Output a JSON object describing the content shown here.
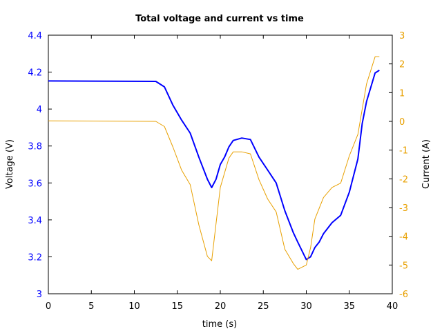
{
  "chart_data": {
    "type": "line",
    "title": "Total voltage and current vs time",
    "xlabel": "time (s)",
    "ylabel_left": "Voltage (V)",
    "ylabel_right": "Current (A)",
    "xlim": [
      0,
      40
    ],
    "ylim_left": [
      3.0,
      4.4
    ],
    "ylim_right": [
      -6,
      3
    ],
    "x_ticks": [
      0,
      5,
      10,
      15,
      20,
      25,
      30,
      35,
      40
    ],
    "x_tick_labels": [
      "0",
      "5",
      "10",
      "15",
      "20",
      "25",
      "30",
      "35",
      "40"
    ],
    "y_left_ticks": [
      3.0,
      3.2,
      3.4,
      3.6,
      3.8,
      4.0,
      4.2,
      4.4
    ],
    "y_left_tick_labels": [
      "3",
      "3.2",
      "3.4",
      "3.6",
      "3.8",
      "4",
      "4.2",
      "4.4"
    ],
    "y_right_ticks": [
      -6,
      -5,
      -4,
      -3,
      -2,
      -1,
      0,
      1,
      2,
      3
    ],
    "y_right_tick_labels": [
      "-6",
      "-5",
      "-4",
      "-3",
      "-2",
      "-1",
      "0",
      "1",
      "2",
      "3"
    ],
    "grid": false,
    "colors": {
      "voltage": "#0000ff",
      "current": "#e8a000",
      "left_axis_ticks": "#0000ff",
      "right_axis_ticks": "#e8a000"
    },
    "series": [
      {
        "axis": "left",
        "x": [
          0,
          12.5,
          13.5,
          14.5,
          15.5,
          16.5,
          17.5,
          18.5,
          19,
          19.5,
          20,
          20.5,
          21,
          21.5,
          22.5,
          23.5,
          24.5,
          25.5,
          26.5,
          27.5,
          28.5,
          29,
          30,
          30.5,
          31,
          31.5,
          32,
          33,
          34,
          35,
          36,
          36.5,
          37,
          38,
          38.5
        ],
        "y": [
          4.152,
          4.15,
          4.12,
          4.02,
          3.94,
          3.87,
          3.74,
          3.62,
          3.575,
          3.62,
          3.7,
          3.74,
          3.795,
          3.83,
          3.843,
          3.835,
          3.74,
          3.67,
          3.6,
          3.45,
          3.33,
          3.28,
          3.185,
          3.2,
          3.25,
          3.28,
          3.325,
          3.385,
          3.425,
          3.55,
          3.73,
          3.92,
          4.04,
          4.195,
          4.21
        ]
      },
      {
        "axis": "right",
        "x": [
          0,
          12.5,
          13.5,
          14.5,
          15.5,
          16.5,
          17.5,
          18.5,
          19,
          20,
          21,
          21.5,
          22.5,
          23.5,
          24.5,
          25.5,
          26.5,
          27.5,
          28.5,
          29,
          30,
          30.5,
          31,
          32,
          33,
          34,
          35,
          36,
          37,
          38,
          38.5
        ],
        "y": [
          0.02,
          0.0,
          -0.18,
          -0.9,
          -1.7,
          -2.2,
          -3.6,
          -4.7,
          -4.85,
          -2.3,
          -1.28,
          -1.06,
          -1.06,
          -1.13,
          -2.03,
          -2.7,
          -3.15,
          -4.45,
          -4.95,
          -5.15,
          -5.0,
          -4.4,
          -3.4,
          -2.65,
          -2.3,
          -2.15,
          -1.2,
          -0.45,
          1.3,
          2.25,
          2.25
        ]
      }
    ]
  }
}
